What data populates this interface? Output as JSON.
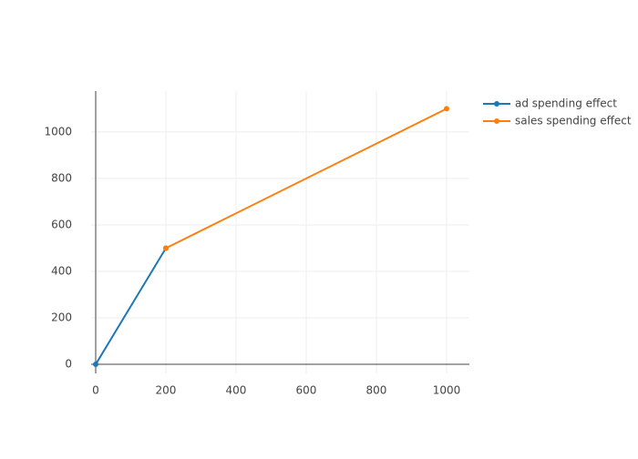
{
  "chart_data": {
    "type": "line",
    "series": [
      {
        "name": "ad spending effect",
        "color": "#1f77b4",
        "x": [
          0,
          200
        ],
        "values": [
          0,
          500
        ]
      },
      {
        "name": "sales spending effect",
        "color": "#ff7f0e",
        "x": [
          200,
          1000
        ],
        "values": [
          500,
          1100
        ]
      }
    ],
    "xlim": [
      -13,
      1065
    ],
    "ylim": [
      -39,
      1176
    ],
    "xticks": [
      0,
      200,
      400,
      600,
      800,
      1000
    ],
    "yticks": [
      0,
      200,
      400,
      600,
      800,
      1000
    ],
    "grid": true,
    "legend": "right"
  }
}
